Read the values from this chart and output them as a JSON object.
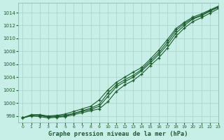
{
  "title": "Graphe pression niveau de la mer (hPa)",
  "bg_color": "#c8eee8",
  "grid_color": "#b0d4cc",
  "line_color": "#1a5c2a",
  "xlim": [
    -0.5,
    23
  ],
  "ylim": [
    997.0,
    1015.5
  ],
  "yticks": [
    998,
    1000,
    1002,
    1004,
    1006,
    1008,
    1010,
    1012,
    1014
  ],
  "xticks": [
    0,
    1,
    2,
    3,
    4,
    5,
    6,
    7,
    8,
    9,
    10,
    11,
    12,
    13,
    14,
    15,
    16,
    17,
    18,
    19,
    20,
    21,
    22,
    23
  ],
  "series": [
    [
      997.7,
      998.1,
      998.1,
      997.9,
      998.0,
      998.1,
      998.4,
      998.7,
      999.0,
      999.5,
      1001.0,
      1002.5,
      1003.3,
      1004.0,
      1005.0,
      1006.2,
      1007.5,
      1009.0,
      1010.8,
      1012.0,
      1013.0,
      1013.5,
      1014.2,
      1014.8
    ],
    [
      997.7,
      998.2,
      998.2,
      998.0,
      998.1,
      998.3,
      998.7,
      999.1,
      999.5,
      1000.5,
      1002.0,
      1003.2,
      1004.0,
      1004.8,
      1005.5,
      1006.8,
      1008.2,
      1009.8,
      1011.5,
      1012.5,
      1013.3,
      1013.8,
      1014.4,
      1015.0
    ],
    [
      997.7,
      998.0,
      997.9,
      997.7,
      997.8,
      997.9,
      998.2,
      998.5,
      998.8,
      999.1,
      1000.2,
      1001.8,
      1002.8,
      1003.5,
      1004.5,
      1005.8,
      1007.0,
      1008.5,
      1010.3,
      1011.6,
      1012.6,
      1013.2,
      1013.9,
      1014.6
    ],
    [
      997.7,
      998.1,
      998.1,
      997.8,
      997.9,
      998.0,
      998.4,
      998.8,
      999.2,
      999.8,
      1001.5,
      1002.8,
      1003.6,
      1004.3,
      1005.2,
      1006.5,
      1007.8,
      1009.4,
      1011.2,
      1012.3,
      1013.1,
      1013.6,
      1014.3,
      1014.9
    ]
  ]
}
